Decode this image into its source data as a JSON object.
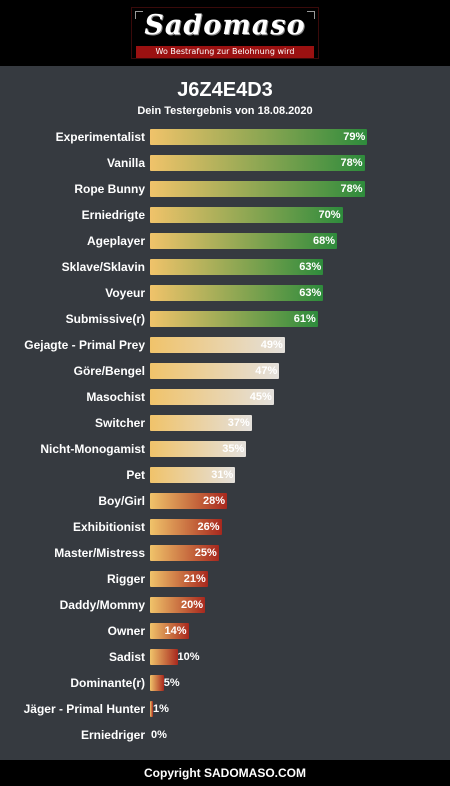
{
  "header": {
    "logo_text": "Sadomaso",
    "logo_tagline": "Wo Bestrafung zur Belohnung wird"
  },
  "title": "J6Z4E4D3",
  "subtitle": "Dein Testergebnis von 18.08.2020",
  "footer": "Copyright SADOMASO.COM",
  "colors": {
    "background": "#363a40",
    "bar_start": "#f0c36a",
    "green": "#2e8b3c",
    "neutral": "#e4e0dc",
    "red": "#a8281e"
  },
  "chart_data": {
    "type": "bar",
    "orientation": "horizontal",
    "categories": [
      "Experimentalist",
      "Vanilla",
      "Rope Bunny",
      "Erniedrigte",
      "Ageplayer",
      "Sklave/Sklavin",
      "Voyeur",
      "Submissive(r)",
      "Gejagte - Primal Prey",
      "Göre/Bengel",
      "Masochist",
      "Switcher",
      "Nicht-Monogamist",
      "Pet",
      "Boy/Girl",
      "Exhibitionist",
      "Master/Mistress",
      "Rigger",
      "Daddy/Mommy",
      "Owner",
      "Sadist",
      "Dominante(r)",
      "Jäger - Primal Hunter",
      "Erniedriger"
    ],
    "values": [
      79,
      78,
      78,
      70,
      68,
      63,
      63,
      61,
      49,
      47,
      45,
      37,
      35,
      31,
      28,
      26,
      25,
      21,
      20,
      14,
      10,
      5,
      1,
      0
    ],
    "value_labels": [
      "79%",
      "78%",
      "78%",
      "70%",
      "68%",
      "63%",
      "63%",
      "61%",
      "49%",
      "47%",
      "45%",
      "37%",
      "35%",
      "31%",
      "28%",
      "26%",
      "25%",
      "21%",
      "20%",
      "14%",
      "10%",
      "5%",
      "1%",
      "0%"
    ],
    "xlim": [
      0,
      100
    ],
    "grid": false,
    "color_bands": [
      {
        "min": 50,
        "max": 100,
        "color": "green"
      },
      {
        "min": 30,
        "max": 49,
        "color": "neutral"
      },
      {
        "min": 0,
        "max": 29,
        "color": "red"
      }
    ]
  }
}
